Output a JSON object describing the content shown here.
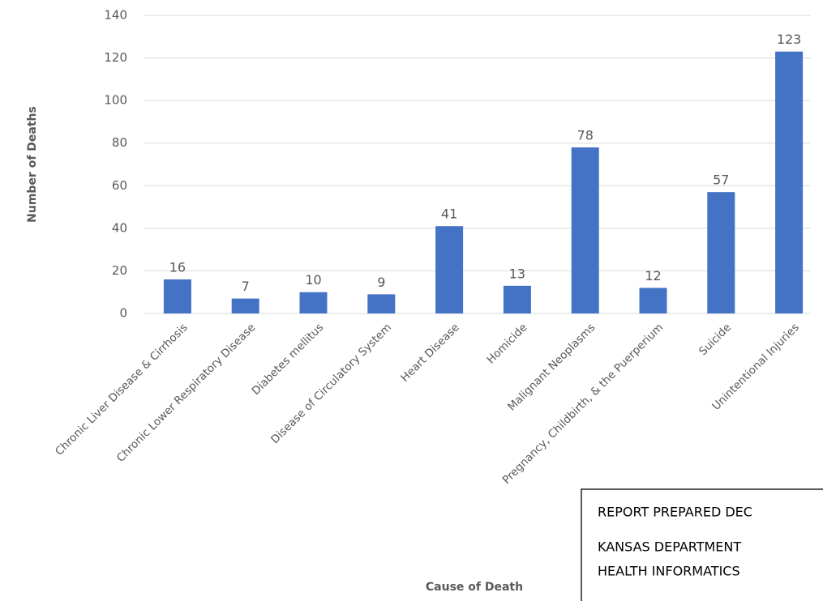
{
  "chart_data": {
    "type": "bar",
    "x_label": "Cause of Death",
    "y_label": "Number of Deaths",
    "categories": [
      "Chronic Liver Disease & Cirrhosis",
      "Chronic Lower Respiratory Disease",
      "Diabetes mellitus",
      "Disease of Circulatory System",
      "Heart Disease",
      "Homicide",
      "Malignant Neoplasms",
      "Pregnancy, Childbirth, & the Puerperium",
      "Suicide",
      "Unintentional Injuries"
    ],
    "values": [
      16,
      7,
      10,
      9,
      41,
      13,
      78,
      12,
      57,
      123
    ],
    "color": "#4472c4",
    "ylim": [
      0,
      140
    ],
    "yticks": [
      0,
      20,
      40,
      60,
      80,
      100,
      120,
      140
    ],
    "grid": true,
    "annotations": [
      "REPORT PREPARED DEC",
      "KANSAS DEPARTMENT",
      "HEALTH INFORMATICS"
    ]
  }
}
